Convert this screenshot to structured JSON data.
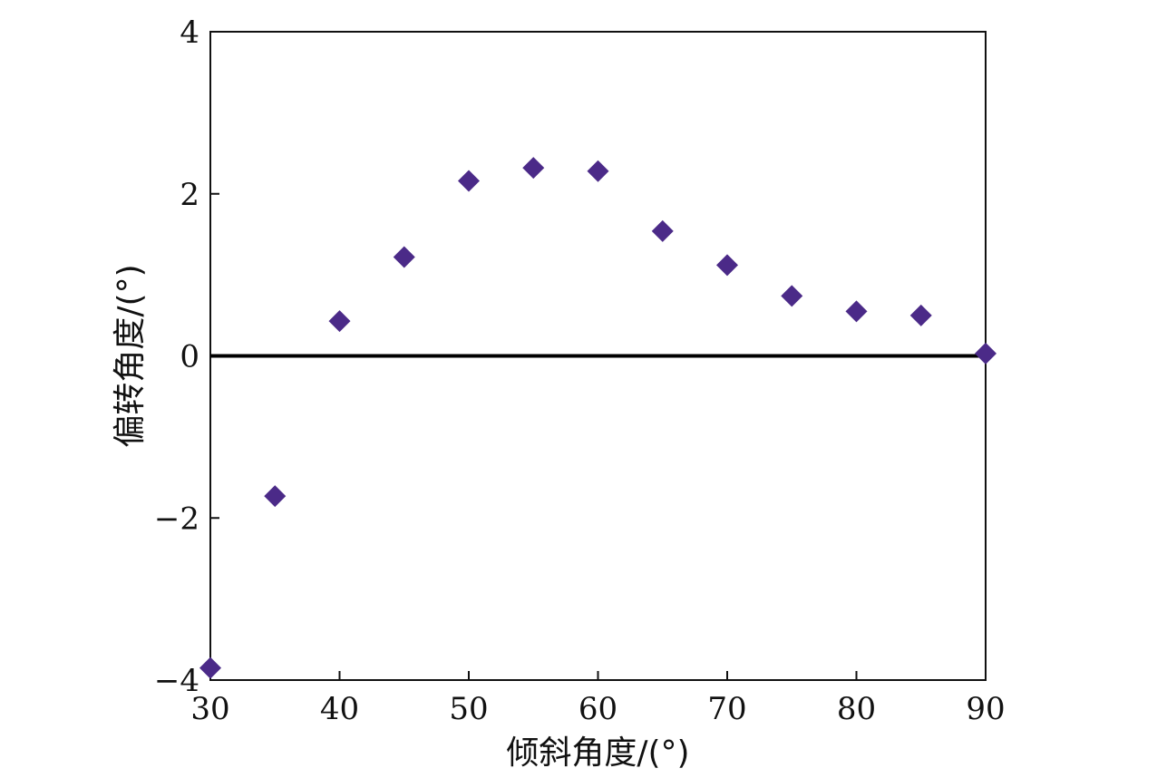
{
  "chart_data": {
    "type": "scatter",
    "title": "",
    "xlabel": "倾斜角度/(°)",
    "ylabel": "偏转角度/(°)",
    "xlim": [
      30,
      90
    ],
    "ylim": [
      -4,
      4
    ],
    "xticks": [
      30,
      40,
      50,
      60,
      70,
      80,
      90
    ],
    "yticks": [
      -4,
      -2,
      0,
      2,
      4
    ],
    "xtick_labels": [
      "30",
      "40",
      "50",
      "60",
      "70",
      "80",
      "90"
    ],
    "ytick_labels": [
      "−4",
      "−2",
      "0",
      "2",
      "4"
    ],
    "grid": false,
    "legend": "none",
    "reference_line_y": 0,
    "marker": "diamond",
    "colors": {
      "marker": "#4b2a88",
      "axes": "#111111",
      "reference_line": "#000000"
    },
    "series": [
      {
        "x": [
          30,
          35,
          40,
          45,
          50,
          55,
          60,
          65,
          70,
          75,
          80,
          85,
          90
        ],
        "y": [
          -3.85,
          -1.73,
          0.43,
          1.22,
          2.16,
          2.32,
          2.28,
          1.54,
          1.12,
          0.74,
          0.55,
          0.5,
          0.03
        ]
      }
    ]
  }
}
